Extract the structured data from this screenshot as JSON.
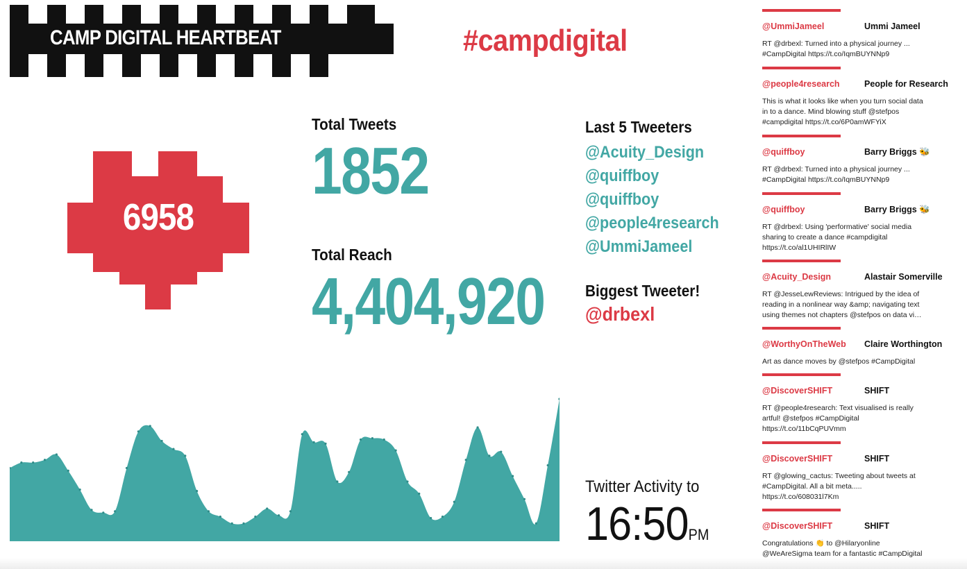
{
  "logo": {
    "text": "CAMP DIGITAL HEARTBEAT"
  },
  "hashtag": "#campdigital",
  "heart": {
    "count": "6958"
  },
  "stats": {
    "tweets_label": "Total Tweets",
    "tweets_value": "1852",
    "reach_label": "Total Reach",
    "reach_value": "4,404,920"
  },
  "last_tweeters": {
    "title": "Last 5 Tweeters",
    "handles": [
      "@Acuity_Design",
      "@quiffboy",
      "@quiffboy",
      "@people4research",
      "@UmmiJameel"
    ]
  },
  "biggest_tweeter": {
    "title": "Biggest Tweeter!",
    "handle": "@drbexl"
  },
  "activity": {
    "label": "Twitter Activity to",
    "time": "16:50",
    "suffix": "PM"
  },
  "chart_data": {
    "type": "area",
    "title": "",
    "xlabel": "",
    "ylabel": "",
    "grid": false,
    "values": [
      0.49,
      0.53,
      0.53,
      0.55,
      0.59,
      0.47,
      0.33,
      0.18,
      0.16,
      0.17,
      0.49,
      0.76,
      0.8,
      0.69,
      0.63,
      0.58,
      0.32,
      0.17,
      0.13,
      0.08,
      0.08,
      0.13,
      0.19,
      0.14,
      0.17,
      0.74,
      0.68,
      0.67,
      0.39,
      0.46,
      0.7,
      0.71,
      0.7,
      0.62,
      0.39,
      0.3,
      0.12,
      0.13,
      0.24,
      0.55,
      0.79,
      0.58,
      0.61,
      0.43,
      0.26,
      0.08,
      0.51,
      1.0
    ]
  },
  "feed": [
    {
      "handle": "@UmmiJameel",
      "name": "Ummi Jameel",
      "text": "RT @drbexl: Turned into a physical journey ... #CampDigital https://t.co/IqmBUYNNp9"
    },
    {
      "handle": "@people4research",
      "name": "People for Research",
      "text": "This is what it looks like when you turn social data in to a dance. Mind blowing stuff @stefpos #campdigital https://t.co/6P0amWFYiX"
    },
    {
      "handle": "@quiffboy",
      "name": "Barry Briggs 🐝",
      "text": "RT @drbexl: Turned into a physical journey ... #CampDigital https://t.co/IqmBUYNNp9"
    },
    {
      "handle": "@quiffboy",
      "name": "Barry Briggs 🐝",
      "text": "RT @drbexl: Using 'performative' social media sharing to create a dance #campdigital https://t.co/al1UHIRlIW"
    },
    {
      "handle": "@Acuity_Design",
      "name": "Alastair Somerville",
      "text": "RT @JesseLewReviews: Intrigued by the idea of reading in a nonlinear way &amp; navigating text using themes not chapters @stefpos on data vi…"
    },
    {
      "handle": "@WorthyOnTheWeb",
      "name": "Claire Worthington",
      "text": "Art as dance moves by @stefpos #CampDigital"
    },
    {
      "handle": "@DiscoverSHIFT",
      "name": "SHIFT",
      "text": "RT @people4research: Text visualised is really artful! @stefpos #CampDigital https://t.co/11bCqPUVmm"
    },
    {
      "handle": "@DiscoverSHIFT",
      "name": "SHIFT",
      "text": "RT @glowing_cactus: Tweeting about tweets at #CampDigital. All a bit meta..... https://t.co/608031l7Km"
    },
    {
      "handle": "@DiscoverSHIFT",
      "name": "SHIFT",
      "text": "Congratulations 👏 to @Hilaryonline @WeAreSigma team for a fantastic #CampDigital"
    }
  ],
  "colors": {
    "red": "#dc3a45",
    "teal": "#42a7a4",
    "black": "#000000",
    "white": "#ffffff"
  }
}
